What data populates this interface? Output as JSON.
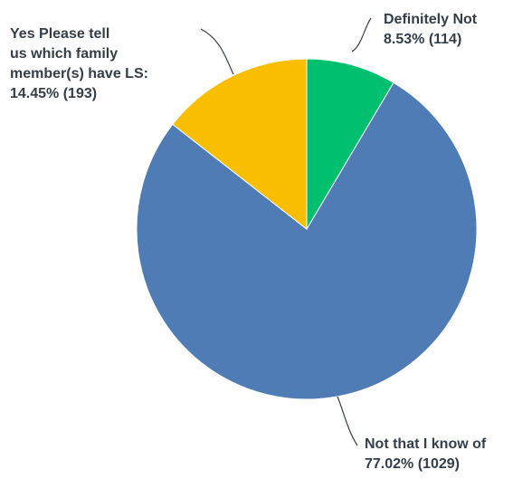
{
  "chart_data": {
    "type": "pie",
    "title": "",
    "start_angle_deg": 0,
    "direction": "clockwise",
    "slices": [
      {
        "label_lines": [
          "Definitely Not"
        ],
        "value_text": "8.53% (114)",
        "percent": 8.53,
        "count": 114,
        "color": "#00bf6f"
      },
      {
        "label_lines": [
          "Not that I know of"
        ],
        "value_text": "77.02% (1029)",
        "percent": 77.02,
        "count": 1029,
        "color": "#507cb6"
      },
      {
        "label_lines": [
          "Yes Please tell",
          "us which family",
          "member(s) have LS:",
          ""
        ],
        "value_text": "14.45% (193)",
        "percent": 14.45,
        "count": 193,
        "color": "#f9be00"
      }
    ]
  }
}
